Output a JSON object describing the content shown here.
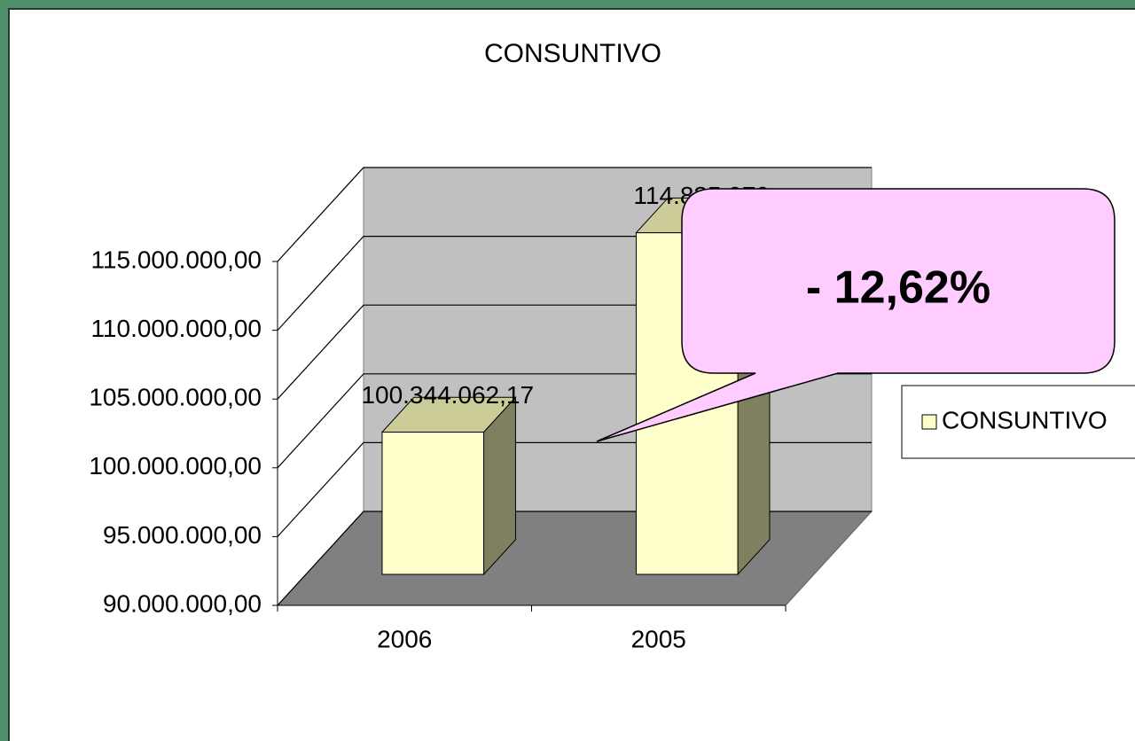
{
  "chart_data": {
    "type": "bar3d",
    "title": "CONSUNTIVO",
    "categories": [
      "2006",
      "2005"
    ],
    "series": [
      {
        "name": "CONSUNTIVO",
        "color": "#ffffcc",
        "values": [
          100344062.17,
          114835979
        ],
        "value_labels": [
          "100.344.062,17",
          "114.835.979"
        ]
      }
    ],
    "ylim": [
      90000000,
      115000000
    ],
    "yticks": [
      {
        "value": 90000000,
        "label": "90.000.000,00"
      },
      {
        "value": 95000000,
        "label": "95.000.000,00"
      },
      {
        "value": 100000000,
        "label": "100.000.000,00"
      },
      {
        "value": 105000000,
        "label": "105.000.000,00"
      },
      {
        "value": 110000000,
        "label": "110.000.000,00"
      },
      {
        "value": 115000000,
        "label": "115.000.000,00"
      }
    ],
    "grid": true,
    "legend": "right",
    "annotation": "- 12,62%"
  }
}
